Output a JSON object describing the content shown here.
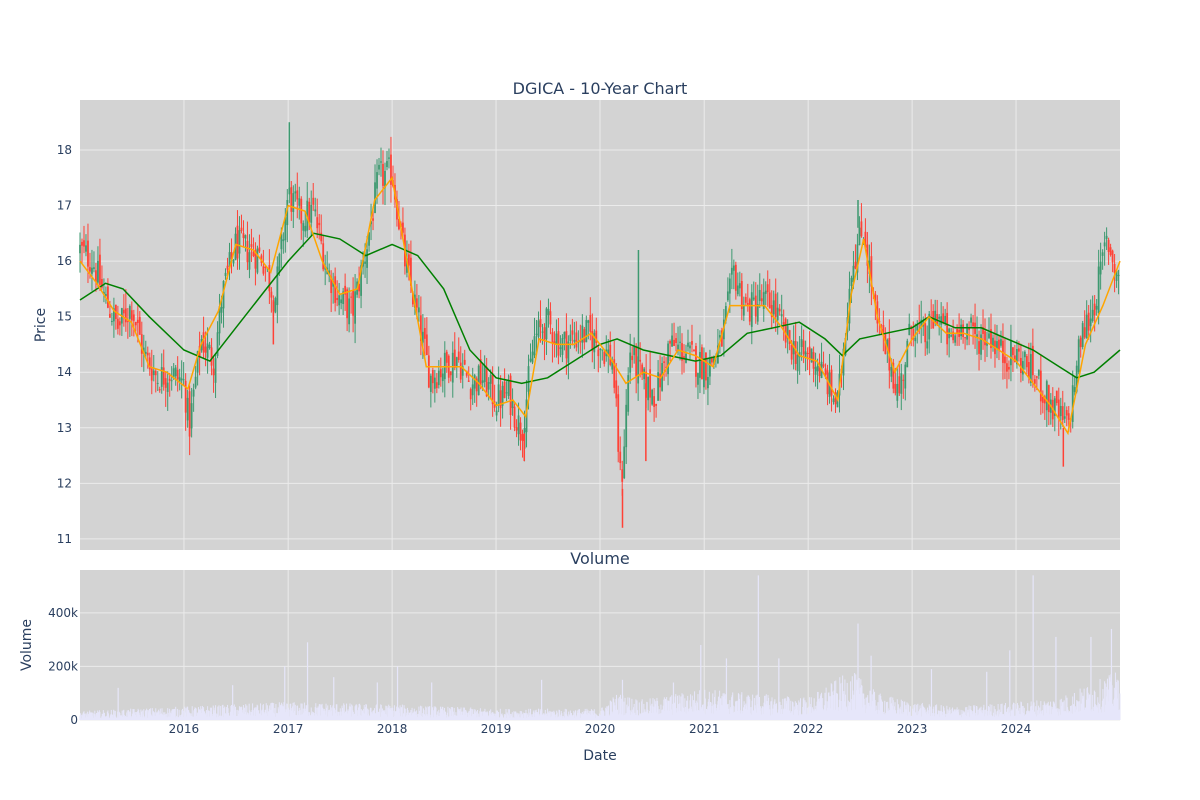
{
  "chart_data": [
    {
      "type": "candlestick",
      "title": "DGICA - 10-Year Chart",
      "xlabel": "",
      "ylabel": "Price",
      "xlim": [
        "2015-01-01",
        "2024-12-31"
      ],
      "ylim": [
        10.8,
        18.9
      ],
      "y_ticks": [
        11,
        12,
        13,
        14,
        15,
        16,
        17,
        18
      ],
      "grid": true,
      "legend": "none",
      "colors": {
        "up": "#3d9970",
        "down": "#ff4136",
        "ma_short": "#ffa500",
        "ma_long": "#008000",
        "background": "#d3d3d3"
      },
      "close_path": [
        [
          "2015-01-01",
          16.2
        ],
        [
          "2015-02-15",
          16.0
        ],
        [
          "2015-04-01",
          15.3
        ],
        [
          "2015-05-15",
          14.8
        ],
        [
          "2015-07-01",
          15.2
        ],
        [
          "2015-08-15",
          14.3
        ],
        [
          "2015-10-01",
          13.9
        ],
        [
          "2015-11-15",
          14.0
        ],
        [
          "2016-01-01",
          13.8
        ],
        [
          "2016-01-20",
          13.0
        ],
        [
          "2016-03-01",
          14.6
        ],
        [
          "2016-04-15",
          14.2
        ],
        [
          "2016-05-15",
          15.4
        ],
        [
          "2016-07-01",
          16.3
        ],
        [
          "2016-08-15",
          16.2
        ],
        [
          "2016-10-01",
          16.1
        ],
        [
          "2016-11-15",
          15.3
        ],
        [
          "2017-01-01",
          17.2
        ],
        [
          "2017-02-15",
          16.8
        ],
        [
          "2017-04-01",
          16.9
        ],
        [
          "2017-05-15",
          15.9
        ],
        [
          "2017-07-01",
          15.3
        ],
        [
          "2017-08-15",
          15.1
        ],
        [
          "2017-10-01",
          16.2
        ],
        [
          "2017-11-15",
          17.5
        ],
        [
          "2018-01-01",
          17.6
        ],
        [
          "2018-02-15",
          16.0
        ],
        [
          "2018-04-01",
          15.0
        ],
        [
          "2018-05-15",
          13.9
        ],
        [
          "2018-07-01",
          14.1
        ],
        [
          "2018-08-15",
          14.3
        ],
        [
          "2018-10-01",
          13.8
        ],
        [
          "2018-11-15",
          13.9
        ],
        [
          "2019-01-01",
          13.5
        ],
        [
          "2019-02-15",
          13.6
        ],
        [
          "2019-04-01",
          12.9
        ],
        [
          "2019-05-15",
          14.6
        ],
        [
          "2019-07-01",
          14.9
        ],
        [
          "2019-08-15",
          14.5
        ],
        [
          "2019-10-01",
          14.6
        ],
        [
          "2019-11-15",
          14.7
        ],
        [
          "2020-01-01",
          14.5
        ],
        [
          "2020-02-15",
          14.2
        ],
        [
          "2020-03-15",
          11.9
        ],
        [
          "2020-04-15",
          14.4
        ],
        [
          "2020-06-01",
          13.8
        ],
        [
          "2020-07-15",
          13.6
        ],
        [
          "2020-09-01",
          14.5
        ],
        [
          "2020-10-15",
          14.4
        ],
        [
          "2020-12-01",
          14.2
        ],
        [
          "2021-01-15",
          14.1
        ],
        [
          "2021-03-01",
          14.5
        ],
        [
          "2021-04-15",
          15.8
        ],
        [
          "2021-06-01",
          15.1
        ],
        [
          "2021-07-15",
          15.3
        ],
        [
          "2021-09-01",
          15.2
        ],
        [
          "2021-10-15",
          14.6
        ],
        [
          "2021-12-01",
          14.3
        ],
        [
          "2022-01-15",
          14.3
        ],
        [
          "2022-03-01",
          13.9
        ],
        [
          "2022-04-15",
          13.4
        ],
        [
          "2022-06-01",
          15.9
        ],
        [
          "2022-07-15",
          16.6
        ],
        [
          "2022-09-01",
          14.8
        ],
        [
          "2022-10-15",
          14.2
        ],
        [
          "2022-11-15",
          13.6
        ],
        [
          "2023-01-01",
          14.9
        ],
        [
          "2023-02-15",
          14.6
        ],
        [
          "2023-04-01",
          15.1
        ],
        [
          "2023-05-15",
          14.5
        ],
        [
          "2023-07-01",
          14.9
        ],
        [
          "2023-08-15",
          14.6
        ],
        [
          "2023-10-01",
          14.7
        ],
        [
          "2023-11-15",
          14.3
        ],
        [
          "2024-01-01",
          14.3
        ],
        [
          "2024-02-15",
          14.1
        ],
        [
          "2024-04-01",
          13.7
        ],
        [
          "2024-05-15",
          13.3
        ],
        [
          "2024-07-01",
          13.0
        ],
        [
          "2024-08-15",
          14.6
        ],
        [
          "2024-10-01",
          15.2
        ],
        [
          "2024-11-15",
          16.4
        ],
        [
          "2024-12-31",
          15.6
        ]
      ],
      "spikes": [
        [
          "2017-01-05",
          18.5,
          17.2
        ],
        [
          "2016-11-10",
          14.5,
          15.3
        ],
        [
          "2020-03-20",
          11.2,
          11.9
        ],
        [
          "2020-05-15",
          16.2,
          14.2
        ],
        [
          "2020-06-10",
          12.4,
          13.8
        ],
        [
          "2022-06-25",
          17.1,
          16.6
        ],
        [
          "2019-04-10",
          12.4,
          12.9
        ],
        [
          "2024-06-15",
          12.3,
          13.0
        ]
      ],
      "ma_short": [
        [
          "2015-01-01",
          16.0
        ],
        [
          "2015-03-01",
          15.6
        ],
        [
          "2015-05-01",
          15.1
        ],
        [
          "2015-07-01",
          14.9
        ],
        [
          "2015-09-01",
          14.1
        ],
        [
          "2015-11-01",
          14.0
        ],
        [
          "2016-01-15",
          13.7
        ],
        [
          "2016-03-01",
          14.5
        ],
        [
          "2016-05-01",
          15.1
        ],
        [
          "2016-07-01",
          16.3
        ],
        [
          "2016-09-01",
          16.2
        ],
        [
          "2016-11-01",
          15.8
        ],
        [
          "2017-01-01",
          17.0
        ],
        [
          "2017-03-01",
          16.9
        ],
        [
          "2017-05-01",
          16.0
        ],
        [
          "2017-07-01",
          15.4
        ],
        [
          "2017-09-01",
          15.5
        ],
        [
          "2017-11-01",
          17.1
        ],
        [
          "2018-01-01",
          17.5
        ],
        [
          "2018-03-01",
          15.8
        ],
        [
          "2018-05-01",
          14.1
        ],
        [
          "2018-07-01",
          14.1
        ],
        [
          "2018-09-01",
          14.1
        ],
        [
          "2018-11-01",
          13.8
        ],
        [
          "2019-01-01",
          13.4
        ],
        [
          "2019-03-01",
          13.5
        ],
        [
          "2019-04-15",
          13.2
        ],
        [
          "2019-06-01",
          14.6
        ],
        [
          "2019-08-01",
          14.5
        ],
        [
          "2019-10-01",
          14.5
        ],
        [
          "2019-12-01",
          14.7
        ],
        [
          "2020-02-01",
          14.3
        ],
        [
          "2020-04-01",
          13.8
        ],
        [
          "2020-06-01",
          14.0
        ],
        [
          "2020-08-01",
          13.9
        ],
        [
          "2020-10-01",
          14.4
        ],
        [
          "2020-12-01",
          14.3
        ],
        [
          "2021-02-01",
          14.1
        ],
        [
          "2021-04-01",
          15.2
        ],
        [
          "2021-06-01",
          15.2
        ],
        [
          "2021-08-01",
          15.2
        ],
        [
          "2021-10-01",
          14.8
        ],
        [
          "2021-12-01",
          14.3
        ],
        [
          "2022-02-01",
          14.2
        ],
        [
          "2022-04-15",
          13.5
        ],
        [
          "2022-06-01",
          15.4
        ],
        [
          "2022-07-15",
          16.4
        ],
        [
          "2022-09-01",
          15.0
        ],
        [
          "2022-11-01",
          14.0
        ],
        [
          "2023-01-01",
          14.6
        ],
        [
          "2023-03-01",
          15.0
        ],
        [
          "2023-05-01",
          14.7
        ],
        [
          "2023-07-01",
          14.7
        ],
        [
          "2023-09-01",
          14.6
        ],
        [
          "2023-11-01",
          14.4
        ],
        [
          "2024-01-01",
          14.2
        ],
        [
          "2024-03-01",
          13.8
        ],
        [
          "2024-05-01",
          13.4
        ],
        [
          "2024-07-01",
          12.9
        ],
        [
          "2024-09-01",
          14.5
        ],
        [
          "2024-11-01",
          15.2
        ],
        [
          "2024-12-31",
          16.0
        ]
      ],
      "ma_long": [
        [
          "2015-01-01",
          15.3
        ],
        [
          "2015-04-01",
          15.6
        ],
        [
          "2015-06-01",
          15.5
        ],
        [
          "2015-09-01",
          15.0
        ],
        [
          "2016-01-01",
          14.4
        ],
        [
          "2016-04-01",
          14.2
        ],
        [
          "2016-07-01",
          14.8
        ],
        [
          "2016-10-01",
          15.4
        ],
        [
          "2017-01-01",
          16.0
        ],
        [
          "2017-04-01",
          16.5
        ],
        [
          "2017-07-01",
          16.4
        ],
        [
          "2017-10-01",
          16.1
        ],
        [
          "2018-01-01",
          16.3
        ],
        [
          "2018-04-01",
          16.1
        ],
        [
          "2018-07-01",
          15.5
        ],
        [
          "2018-10-01",
          14.4
        ],
        [
          "2019-01-01",
          13.9
        ],
        [
          "2019-04-01",
          13.8
        ],
        [
          "2019-07-01",
          13.9
        ],
        [
          "2019-10-01",
          14.2
        ],
        [
          "2020-01-01",
          14.5
        ],
        [
          "2020-03-01",
          14.6
        ],
        [
          "2020-06-01",
          14.4
        ],
        [
          "2020-09-01",
          14.3
        ],
        [
          "2020-12-01",
          14.2
        ],
        [
          "2021-03-01",
          14.3
        ],
        [
          "2021-06-01",
          14.7
        ],
        [
          "2021-09-01",
          14.8
        ],
        [
          "2021-12-01",
          14.9
        ],
        [
          "2022-03-01",
          14.6
        ],
        [
          "2022-05-01",
          14.3
        ],
        [
          "2022-07-01",
          14.6
        ],
        [
          "2022-10-01",
          14.7
        ],
        [
          "2023-01-01",
          14.8
        ],
        [
          "2023-03-01",
          15.0
        ],
        [
          "2023-06-01",
          14.8
        ],
        [
          "2023-09-01",
          14.8
        ],
        [
          "2023-12-01",
          14.6
        ],
        [
          "2024-03-01",
          14.4
        ],
        [
          "2024-06-01",
          14.1
        ],
        [
          "2024-08-01",
          13.9
        ],
        [
          "2024-10-01",
          14.0
        ],
        [
          "2024-12-31",
          14.4
        ]
      ]
    },
    {
      "type": "bar",
      "title": "Volume",
      "xlabel": "Date",
      "ylabel": "Volume",
      "xlim": [
        "2015-01-01",
        "2024-12-31"
      ],
      "ylim": [
        0,
        560000
      ],
      "y_ticks": [
        0,
        200000,
        400000
      ],
      "y_tick_labels": [
        "0",
        "200k",
        "400k"
      ],
      "x_tick_labels": [
        "2016",
        "2017",
        "2018",
        "2019",
        "2020",
        "2021",
        "2022",
        "2023",
        "2024"
      ],
      "grid": true,
      "color": "#e6e6fa",
      "baseline": [
        [
          "2015-01-01",
          20000
        ],
        [
          "2016-01-01",
          30000
        ],
        [
          "2017-01-01",
          40000
        ],
        [
          "2018-01-01",
          35000
        ],
        [
          "2019-01-01",
          25000
        ],
        [
          "2020-01-01",
          25000
        ],
        [
          "2020-03-01",
          60000
        ],
        [
          "2020-06-01",
          45000
        ],
        [
          "2021-01-01",
          70000
        ],
        [
          "2021-06-01",
          60000
        ],
        [
          "2022-01-01",
          50000
        ],
        [
          "2022-06-01",
          110000
        ],
        [
          "2022-09-01",
          60000
        ],
        [
          "2023-01-01",
          40000
        ],
        [
          "2023-06-01",
          30000
        ],
        [
          "2024-01-01",
          40000
        ],
        [
          "2024-06-01",
          50000
        ],
        [
          "2024-12-31",
          110000
        ]
      ],
      "peaks": [
        [
          "2015-05-15",
          120000
        ],
        [
          "2016-06-20",
          130000
        ],
        [
          "2016-12-20",
          200000
        ],
        [
          "2017-03-10",
          290000
        ],
        [
          "2017-06-10",
          160000
        ],
        [
          "2017-11-10",
          140000
        ],
        [
          "2018-01-20",
          200000
        ],
        [
          "2018-05-20",
          140000
        ],
        [
          "2019-06-10",
          150000
        ],
        [
          "2020-03-20",
          150000
        ],
        [
          "2020-09-15",
          140000
        ],
        [
          "2020-12-20",
          280000
        ],
        [
          "2021-03-20",
          230000
        ],
        [
          "2021-07-10",
          540000
        ],
        [
          "2021-09-20",
          230000
        ],
        [
          "2022-06-25",
          360000
        ],
        [
          "2022-08-10",
          240000
        ],
        [
          "2023-03-10",
          190000
        ],
        [
          "2023-09-20",
          180000
        ],
        [
          "2024-03-01",
          540000
        ],
        [
          "2024-05-20",
          310000
        ],
        [
          "2024-09-20",
          310000
        ],
        [
          "2024-12-01",
          340000
        ],
        [
          "2023-12-10",
          260000
        ]
      ]
    }
  ]
}
